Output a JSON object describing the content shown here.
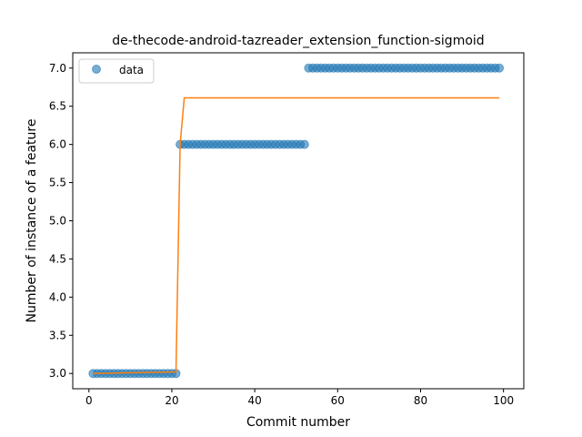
{
  "chart_data": {
    "type": "scatter",
    "title": "de-thecode-android-tazreader_extension_function-sigmoid",
    "xlabel": "Commit number",
    "ylabel": "Number of instance of a feature",
    "xlim": [
      -3.9,
      104.9
    ],
    "ylim": [
      2.8,
      7.2
    ],
    "xticks": [
      0,
      20,
      40,
      60,
      80,
      100
    ],
    "yticks": [
      3.0,
      3.5,
      4.0,
      4.5,
      5.0,
      5.5,
      6.0,
      6.5,
      7.0
    ],
    "xtick_labels": [
      "0",
      "20",
      "40",
      "60",
      "80",
      "100"
    ],
    "ytick_labels": [
      "3.0",
      "3.5",
      "4.0",
      "4.5",
      "5.0",
      "5.5",
      "6.0",
      "6.5",
      "7.0"
    ],
    "grid": false,
    "legend_position": "upper-left",
    "colors": {
      "data": "#1f77b4",
      "fit": "#ff7f0e"
    },
    "series": [
      {
        "name": "data",
        "kind": "scatter",
        "segments": [
          {
            "x_start": 1,
            "x_end": 21,
            "y": 3.0
          },
          {
            "x_start": 22,
            "x_end": 52,
            "y": 6.0
          },
          {
            "x_start": 53,
            "x_end": 99,
            "y": 7.0
          }
        ]
      },
      {
        "kind": "line",
        "points": [
          [
            1,
            3.0
          ],
          [
            21,
            3.02
          ],
          [
            22,
            6.0
          ],
          [
            23,
            6.61
          ],
          [
            99,
            6.61
          ]
        ]
      }
    ]
  }
}
